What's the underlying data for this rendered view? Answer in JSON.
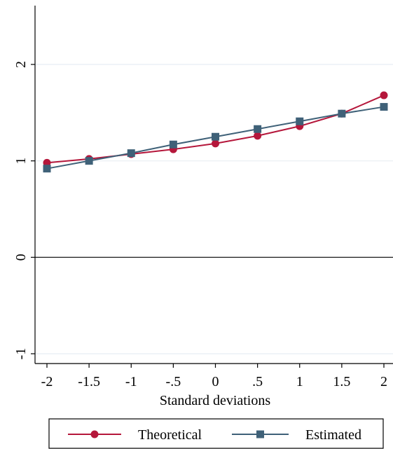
{
  "chart_data": {
    "type": "line",
    "title": "",
    "xlabel": "Standard deviations",
    "ylabel": "",
    "x": [
      -2,
      -1.5,
      -1,
      -0.5,
      0,
      0.5,
      1,
      1.5,
      2
    ],
    "xlim": [
      -2.1,
      2.1
    ],
    "ylim": [
      -1.1,
      2.6
    ],
    "grid": true,
    "reference_line_y": 0,
    "x_ticks": [
      {
        "value": -2,
        "label": "-2"
      },
      {
        "value": -1.5,
        "label": "-1.5"
      },
      {
        "value": -1,
        "label": "-1"
      },
      {
        "value": -0.5,
        "label": "-.5"
      },
      {
        "value": 0,
        "label": "0"
      },
      {
        "value": 0.5,
        "label": ".5"
      },
      {
        "value": 1,
        "label": "1"
      },
      {
        "value": 1.5,
        "label": "1.5"
      },
      {
        "value": 2,
        "label": "2"
      }
    ],
    "y_ticks": [
      {
        "value": -1,
        "label": "-1"
      },
      {
        "value": 0,
        "label": "0"
      },
      {
        "value": 1,
        "label": "1"
      },
      {
        "value": 2,
        "label": "2"
      }
    ],
    "series": [
      {
        "name": "Theoretical",
        "marker": "circle",
        "color": "#b5173b",
        "values": [
          0.98,
          1.02,
          1.07,
          1.12,
          1.18,
          1.26,
          1.36,
          1.49,
          1.68
        ]
      },
      {
        "name": "Estimated",
        "marker": "square",
        "color": "#3f6178",
        "values": [
          0.92,
          1.0,
          1.08,
          1.17,
          1.25,
          1.33,
          1.41,
          1.49,
          1.56
        ]
      }
    ],
    "legend_position": "bottom"
  }
}
